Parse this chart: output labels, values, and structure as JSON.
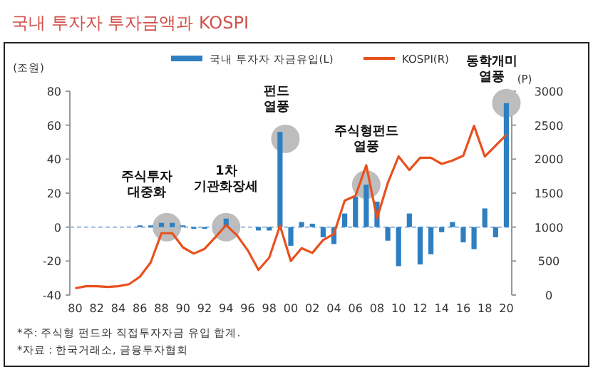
{
  "chart_data": {
    "type": "bar",
    "title": "국내 투자자 투자금액과 KOSPI",
    "ylabel": "(조원)",
    "y2label": "(P)",
    "x": [
      1980,
      1981,
      1982,
      1983,
      1984,
      1985,
      1986,
      1987,
      1988,
      1989,
      1990,
      1991,
      1992,
      1993,
      1994,
      1995,
      1996,
      1997,
      1998,
      1999,
      2000,
      2001,
      2002,
      2003,
      2004,
      2005,
      2006,
      2007,
      2008,
      2009,
      2010,
      2011,
      2012,
      2013,
      2014,
      2015,
      2016,
      2017,
      2018,
      2019,
      2020
    ],
    "series": [
      {
        "name": "국내 투자자 자금유입(L)",
        "color": "#2e7fc1",
        "values": [
          null,
          null,
          null,
          null,
          null,
          null,
          1,
          1,
          2.5,
          2.5,
          1,
          -1,
          -1,
          null,
          5,
          null,
          null,
          -2,
          -2,
          56,
          -11,
          3,
          2,
          -6,
          -10,
          8,
          18,
          25,
          15,
          -8,
          -23,
          8,
          -22,
          -16,
          -3,
          3,
          -9,
          -13,
          11,
          -6,
          73
        ]
      },
      {
        "name": "KOSPI(R)",
        "type": "line",
        "axis": "y2",
        "color": "#e8501e",
        "values": [
          100,
          130,
          130,
          120,
          130,
          160,
          270,
          480,
          910,
          910,
          700,
          610,
          680,
          850,
          1030,
          880,
          660,
          370,
          550,
          1020,
          500,
          690,
          620,
          810,
          900,
          1390,
          1460,
          1910,
          1130,
          1650,
          2040,
          1840,
          2020,
          2020,
          1930,
          1980,
          2050,
          2490,
          2040,
          2200,
          2360
        ]
      }
    ],
    "xlim": [
      1979.5,
      2020.5
    ],
    "xticks": [
      {
        "value": 1980,
        "label": "80"
      },
      {
        "value": 1982,
        "label": "82"
      },
      {
        "value": 1984,
        "label": "84"
      },
      {
        "value": 1986,
        "label": "86"
      },
      {
        "value": 1988,
        "label": "88"
      },
      {
        "value": 1990,
        "label": "90"
      },
      {
        "value": 1992,
        "label": "92"
      },
      {
        "value": 1994,
        "label": "94"
      },
      {
        "value": 1996,
        "label": "96"
      },
      {
        "value": 1998,
        "label": "98"
      },
      {
        "value": 2000,
        "label": "00"
      },
      {
        "value": 2002,
        "label": "02"
      },
      {
        "value": 2004,
        "label": "04"
      },
      {
        "value": 2006,
        "label": "06"
      },
      {
        "value": 2008,
        "label": "08"
      },
      {
        "value": 2010,
        "label": "10"
      },
      {
        "value": 2012,
        "label": "12"
      },
      {
        "value": 2014,
        "label": "14"
      },
      {
        "value": 2016,
        "label": "16"
      },
      {
        "value": 2018,
        "label": "18"
      },
      {
        "value": 2020,
        "label": "20"
      }
    ],
    "ylim": [
      -40,
      80
    ],
    "yticks": [
      -40,
      -20,
      0,
      20,
      40,
      60,
      80
    ],
    "y2lim": [
      0,
      3000
    ],
    "y2ticks": [
      0,
      500,
      1000,
      1500,
      2000,
      2500,
      3000
    ],
    "ref_lines": [
      {
        "axis": "y",
        "value": 0,
        "color": "#9bbbe0",
        "line_style": "dashed"
      }
    ],
    "legend": "top right",
    "grid": false,
    "annotations": [
      {
        "text": "주식투자 대중화",
        "x": 1988.5,
        "y": 0
      },
      {
        "text": "1차 기관화장세",
        "x": 1994,
        "y": 0
      },
      {
        "text": "펀드 열풍",
        "x": 1999.5,
        "y": 52
      },
      {
        "text": "주식형펀드 열풍",
        "x": 2007,
        "y": 25
      },
      {
        "text": "동학개미 열풍",
        "x": 2020,
        "y": 73
      },
      "*주: 주식형 펀드와 직접투자자금 유입 합계.",
      "*자료 : 한국거래소, 금융투자협회"
    ]
  }
}
